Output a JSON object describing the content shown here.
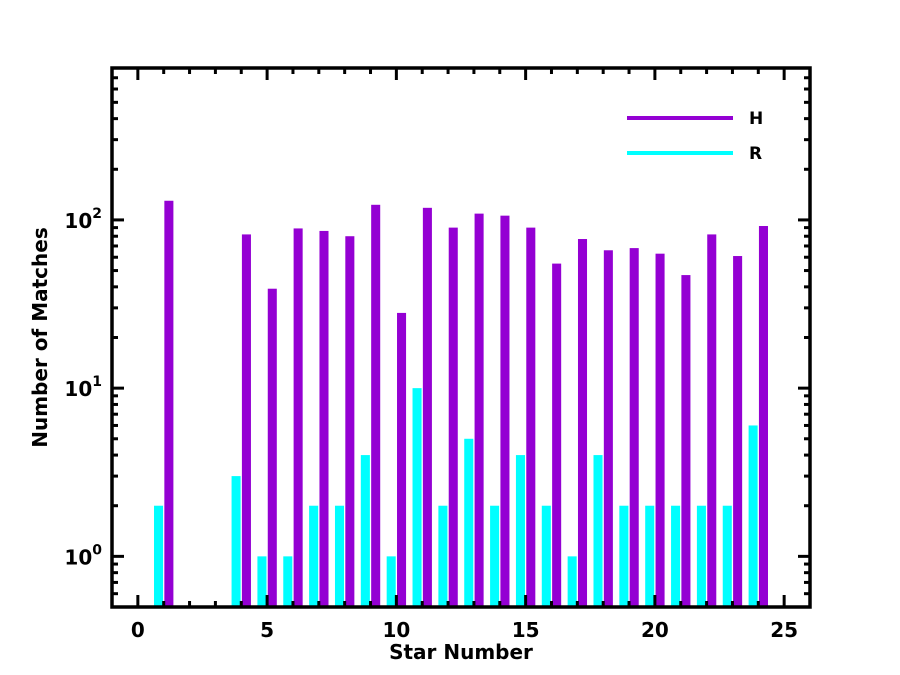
{
  "chart_data": {
    "type": "bar",
    "xlabel": "Star Number",
    "ylabel": "Number of Matches",
    "yscale": "log",
    "ylim": [
      0.5,
      800
    ],
    "xlim": [
      -1,
      26
    ],
    "x": [
      1,
      2,
      3,
      4,
      5,
      6,
      7,
      8,
      9,
      10,
      11,
      12,
      13,
      14,
      15,
      16,
      17,
      18,
      19,
      20,
      21,
      22,
      23,
      24
    ],
    "series": [
      {
        "name": "H",
        "color": "#9400D3",
        "values": [
          130,
          null,
          null,
          82,
          39,
          89,
          86,
          80,
          123,
          28,
          118,
          90,
          109,
          106,
          90,
          55,
          77,
          66,
          68,
          63,
          47,
          82,
          61,
          92
        ]
      },
      {
        "name": "R",
        "color": "#00FFFF",
        "values": [
          2,
          null,
          null,
          3,
          1,
          1,
          2,
          2,
          4,
          1,
          10,
          2,
          5,
          2,
          4,
          2,
          1,
          4,
          2,
          2,
          2,
          2,
          2,
          6
        ]
      }
    ],
    "xticks": [
      {
        "value": 0,
        "label": "0"
      },
      {
        "value": 5,
        "label": "5"
      },
      {
        "value": 10,
        "label": "10"
      },
      {
        "value": 15,
        "label": "15"
      },
      {
        "value": 20,
        "label": "20"
      },
      {
        "value": 25,
        "label": "25"
      }
    ],
    "yticks": [
      {
        "value": 1,
        "base": "10",
        "exp": "0"
      },
      {
        "value": 10,
        "base": "10",
        "exp": "1"
      },
      {
        "value": 100,
        "base": "10",
        "exp": "2"
      }
    ],
    "legend_position": "top-right",
    "grid": false
  }
}
